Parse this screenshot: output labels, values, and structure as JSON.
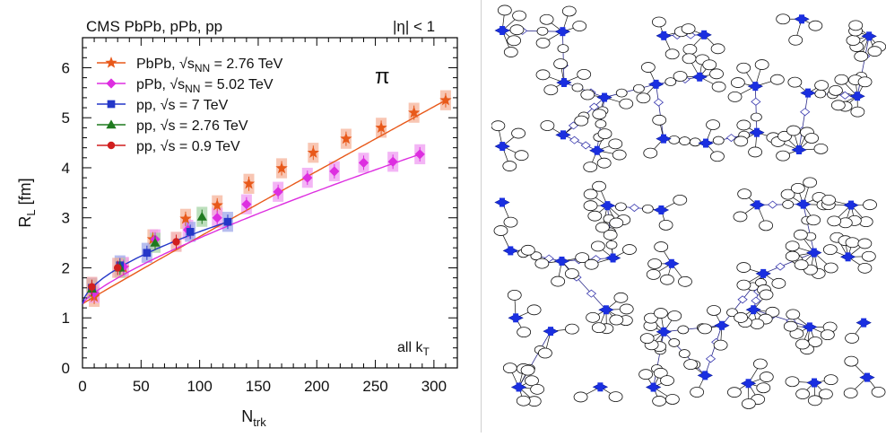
{
  "chart_data": {
    "type": "scatter",
    "header_left": "CMS PbPb, pPb, pp",
    "header_right": "|η| < 1",
    "particle_label": "π",
    "corner_label": "all k",
    "corner_label_sub": "T",
    "xlabel": "N",
    "xlabel_sub": "trk",
    "ylabel": "R",
    "ylabel_sub": "L",
    "ylabel_unit": " [fm]",
    "xlim": [
      0,
      320
    ],
    "ylim": [
      0,
      6.6
    ],
    "x_ticks": [
      "0",
      "50",
      "100",
      "150",
      "200",
      "250",
      "300"
    ],
    "y_ticks": [
      "0",
      "1",
      "2",
      "3",
      "4",
      "5",
      "6"
    ],
    "series": [
      {
        "name": "PbPb",
        "legend_prefix": "PbPb, ",
        "legend_sqrt": "√s",
        "legend_sub": "NN",
        "legend_suffix": " = 2.76 TeV",
        "marker": "star",
        "color": "#e8591a",
        "box_color": "#f6b39a",
        "x": [
          10,
          35,
          60,
          88,
          115,
          142,
          170,
          197,
          225,
          255,
          283,
          310
        ],
        "y": [
          1.42,
          2.0,
          2.57,
          2.98,
          3.25,
          3.68,
          3.99,
          4.3,
          4.58,
          4.8,
          5.1,
          5.35
        ],
        "fit": true
      },
      {
        "name": "pPb",
        "legend_prefix": "pPb, ",
        "legend_sqrt": "√s",
        "legend_sub": "NN",
        "legend_suffix": " = 5.02 TeV",
        "marker": "diamond",
        "color": "#dd2ee0",
        "box_color": "#ef9cf1",
        "x": [
          10,
          35,
          62,
          90,
          115,
          140,
          167,
          192,
          215,
          240,
          265,
          288
        ],
        "y": [
          1.5,
          2.02,
          2.57,
          2.76,
          3.0,
          3.27,
          3.52,
          3.8,
          3.93,
          4.1,
          4.12,
          4.27
        ],
        "fit": true
      },
      {
        "name": "pp 7 TeV",
        "legend_prefix": "pp, ",
        "legend_sqrt": "√s",
        "legend_sub": "",
        "legend_suffix": " = 7 TeV",
        "marker": "square",
        "color": "#2437c8",
        "box_color": "#9fa8ea",
        "x": [
          8,
          32,
          55,
          92,
          124
        ],
        "y": [
          1.6,
          2.05,
          2.3,
          2.72,
          2.92
        ],
        "fit": true
      },
      {
        "name": "pp 2.76 TeV",
        "legend_prefix": "pp, ",
        "legend_sqrt": "√s",
        "legend_sub": "",
        "legend_suffix": " = 2.76 TeV",
        "marker": "triangle",
        "color": "#1f7a1f",
        "box_color": "#a6d4a6",
        "x": [
          8,
          32,
          62,
          102
        ],
        "y": [
          1.58,
          2.0,
          2.5,
          3.02
        ],
        "fit": false
      },
      {
        "name": "pp 0.9 TeV",
        "legend_prefix": "pp, ",
        "legend_sqrt": "√s",
        "legend_sub": "",
        "legend_suffix": " = 0.9 TeV",
        "marker": "circle",
        "color": "#d11f1f",
        "box_color": "#f2a6a6",
        "x": [
          8,
          30,
          80
        ],
        "y": [
          1.62,
          2.0,
          2.52
        ],
        "fit": false
      }
    ]
  },
  "network_figure": {
    "description_name": "graph-network",
    "node_color": "#1a2fe0",
    "edge_color": "#2a2a8a"
  }
}
